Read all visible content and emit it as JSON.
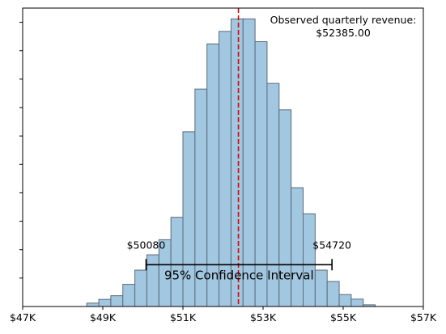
{
  "chart_data": {
    "type": "histogram",
    "title": "",
    "xlabel": "",
    "ylabel": "",
    "xlim": [
      47000,
      57000
    ],
    "ylim": [
      0,
      1050
    ],
    "x_ticks": [
      {
        "value": 47000,
        "label": "$47K"
      },
      {
        "value": 49000,
        "label": "$49K"
      },
      {
        "value": 51000,
        "label": "$51K"
      },
      {
        "value": 53000,
        "label": "$53K"
      },
      {
        "value": 55000,
        "label": "$55K"
      },
      {
        "value": 57000,
        "label": "$57K"
      }
    ],
    "y_ticks": [
      100,
      200,
      300,
      400,
      500,
      600,
      700,
      800,
      900,
      1000
    ],
    "y_tick_labels_shown": false,
    "bin_width": 300,
    "bin_start": 48600,
    "counts": [
      12,
      25,
      38,
      78,
      128,
      182,
      235,
      314,
      615,
      765,
      924,
      968,
      1012,
      1012,
      932,
      785,
      692,
      418,
      326,
      128,
      88,
      42,
      26,
      6
    ],
    "bar_fill": "#a2c7e0",
    "bar_edge": "#5b6b78",
    "observed": {
      "value": 52385,
      "label_line1": "Observed quarterly revenue:",
      "label_line2": "$52385.00",
      "color": "#e00000"
    },
    "confidence_interval": {
      "lower": 50080,
      "upper": 54720,
      "lower_label": "$50080",
      "upper_label": "$54720",
      "label": "95% Confidence Interval",
      "level": 150
    },
    "grid": false,
    "legend": "none"
  }
}
